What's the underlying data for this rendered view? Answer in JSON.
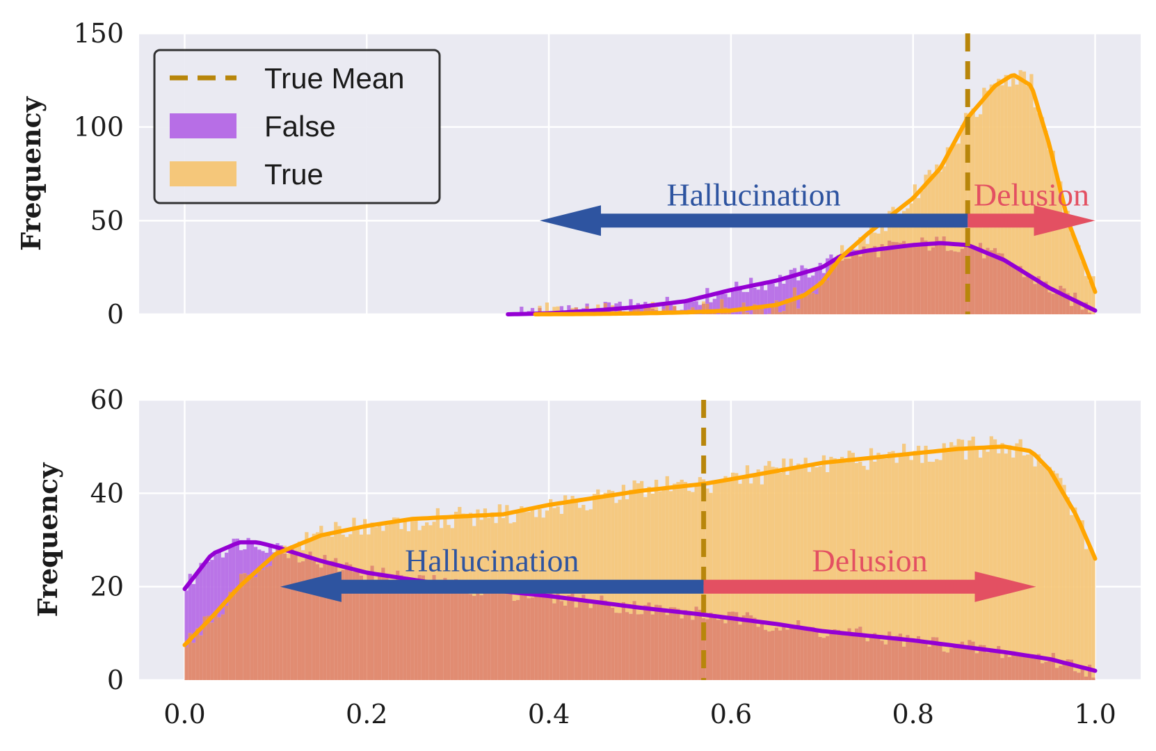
{
  "chart_data": [
    {
      "type": "histogram",
      "panel": "top",
      "ylabel": "Frequency",
      "xlim": [
        -0.05,
        1.05
      ],
      "ylim": [
        0,
        150
      ],
      "yticks": [
        0,
        50,
        100,
        150
      ],
      "ytick_labels": [
        "0",
        "50",
        "100",
        "150"
      ],
      "xticks": [
        0.0,
        0.2,
        0.4,
        0.6,
        0.8,
        1.0
      ],
      "show_xtick_labels": false,
      "grid": true,
      "true_mean": 0.86,
      "legend": {
        "placement": "top-left",
        "entries": [
          {
            "label": "True Mean",
            "kind": "dashed-line",
            "color": "#b8860b"
          },
          {
            "label": "False",
            "kind": "patch",
            "color": "#b76ee6"
          },
          {
            "label": "True",
            "kind": "patch",
            "color": "#f5c77a"
          }
        ]
      },
      "kde_false": {
        "name": "False",
        "color": "#9400d3",
        "x": [
          0.355,
          0.4,
          0.45,
          0.5,
          0.55,
          0.6,
          0.65,
          0.7,
          0.72,
          0.75,
          0.8,
          0.83,
          0.86,
          0.9,
          0.95,
          1.0
        ],
        "y": [
          0,
          0.5,
          2,
          4,
          7,
          13,
          18,
          25,
          31,
          34,
          37,
          38,
          37,
          29,
          14,
          2
        ]
      },
      "kde_true": {
        "name": "True",
        "color": "#ffa500",
        "x": [
          0.385,
          0.45,
          0.5,
          0.55,
          0.6,
          0.65,
          0.68,
          0.7,
          0.72,
          0.75,
          0.8,
          0.83,
          0.86,
          0.89,
          0.91,
          0.93,
          0.95,
          0.97,
          1.0
        ],
        "y": [
          0,
          0.2,
          0.5,
          1,
          2,
          5,
          10,
          17,
          30,
          43,
          62,
          78,
          105,
          122,
          128,
          122,
          90,
          50,
          12
        ]
      },
      "annotations": [
        {
          "text": "Hallucination",
          "color": "#2e54a0",
          "arrow_from": 0.86,
          "arrow_to": 0.39,
          "y": 50
        },
        {
          "text": "Delusion",
          "color": "#e35062",
          "arrow_from": 0.86,
          "arrow_to": 1.0,
          "y": 50
        }
      ]
    },
    {
      "type": "histogram",
      "panel": "bottom",
      "ylabel": "Frequency",
      "xlim": [
        -0.05,
        1.05
      ],
      "ylim": [
        0,
        60
      ],
      "yticks": [
        0,
        20,
        40,
        60
      ],
      "ytick_labels": [
        "0",
        "20",
        "40",
        "60"
      ],
      "xticks": [
        0.0,
        0.2,
        0.4,
        0.6,
        0.8,
        1.0
      ],
      "xtick_labels": [
        "0.0",
        "0.2",
        "0.4",
        "0.6",
        "0.8",
        "1.0"
      ],
      "grid": true,
      "true_mean": 0.57,
      "kde_false": {
        "name": "False",
        "color": "#9400d3",
        "x": [
          0.0,
          0.03,
          0.06,
          0.08,
          0.1,
          0.15,
          0.2,
          0.3,
          0.4,
          0.5,
          0.57,
          0.65,
          0.7,
          0.8,
          0.9,
          0.95,
          1.0
        ],
        "y": [
          19.5,
          27,
          29.5,
          29.5,
          28.5,
          25.5,
          23,
          20,
          18,
          15.5,
          14,
          12,
          10.5,
          8.5,
          6,
          4.5,
          2
        ]
      },
      "kde_true": {
        "name": "True",
        "color": "#ffa500",
        "x": [
          0.0,
          0.03,
          0.06,
          0.1,
          0.15,
          0.2,
          0.25,
          0.3,
          0.35,
          0.4,
          0.5,
          0.57,
          0.6,
          0.7,
          0.8,
          0.85,
          0.9,
          0.93,
          0.95,
          0.98,
          1.0
        ],
        "y": [
          7.5,
          13.5,
          20,
          27,
          31,
          33,
          34.5,
          35,
          35.5,
          37.5,
          40.5,
          42,
          43,
          46.5,
          48.5,
          49.5,
          50,
          49,
          45,
          35,
          26
        ]
      },
      "annotations": [
        {
          "text": "Hallucination",
          "color": "#2e54a0",
          "arrow_from": 0.57,
          "arrow_to": 0.105,
          "y": 20
        },
        {
          "text": "Delusion",
          "color": "#e35062",
          "arrow_from": 0.57,
          "arrow_to": 0.935,
          "y": 20
        }
      ]
    }
  ],
  "colors": {
    "plot_bg": "#eaeaf2",
    "grid": "#ffffff",
    "false_bar": "#b76ee6",
    "true_bar": "#f5c77a",
    "overlap_bar": "#e0876a",
    "mean_line": "#b8860b"
  }
}
